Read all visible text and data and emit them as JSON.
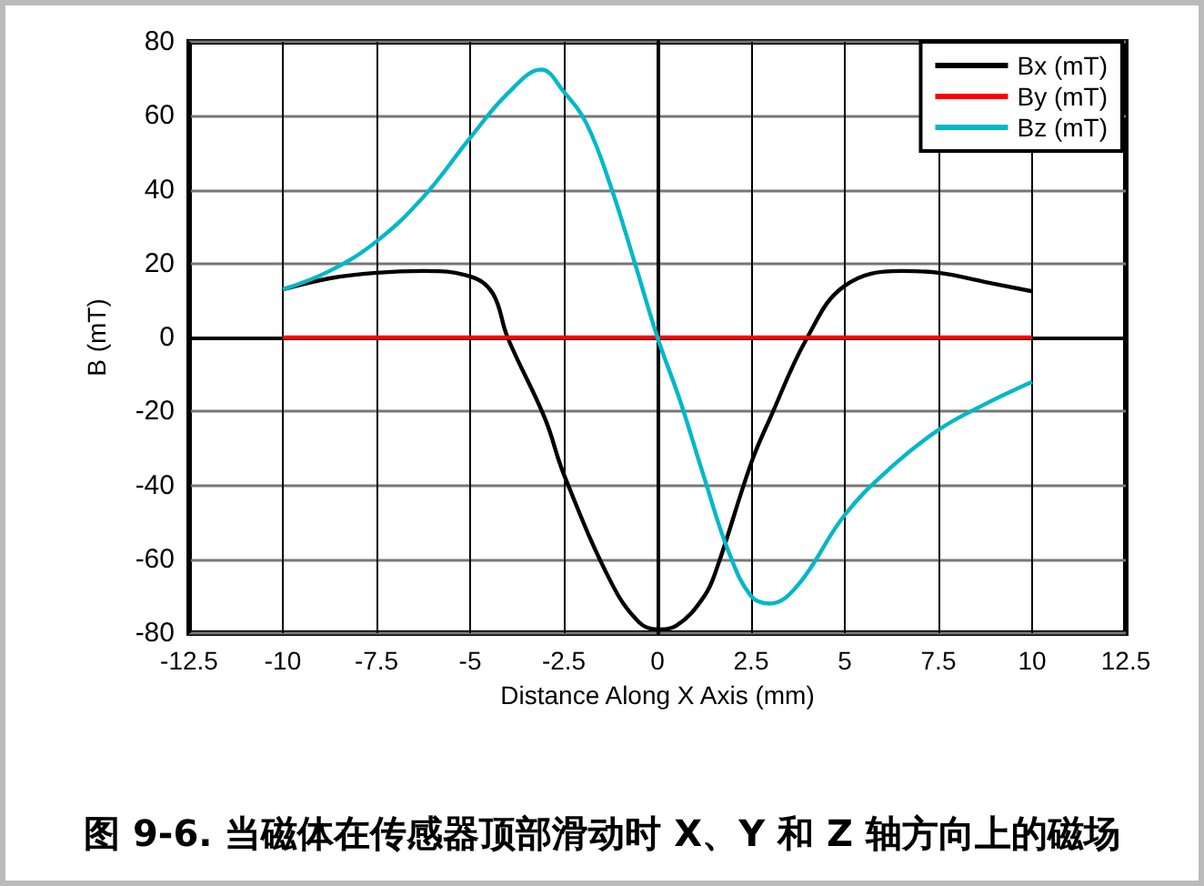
{
  "chart_data": {
    "type": "line",
    "title": "图 9-6. 当磁体在传感器顶部滑动时 X、Y 和 Z 轴方向上的磁场",
    "xlabel": "Distance Along X Axis (mm)",
    "ylabel": "B (mT)",
    "xlim": [
      -12.5,
      12.5
    ],
    "xticks": [
      -12.5,
      -10,
      -7.5,
      -5,
      -2.5,
      0,
      2.5,
      5,
      7.5,
      10,
      12.5
    ],
    "ylim": [
      -80,
      80
    ],
    "yticks": [
      -80,
      -60,
      -40,
      -20,
      0,
      20,
      40,
      60,
      80
    ],
    "grid": true,
    "legend": "top right",
    "marker": "none",
    "line_style": "solid",
    "series": [
      {
        "name": "Bx (mT)",
        "color": "#000000",
        "x": [
          -10,
          -8.75,
          -7.5,
          -6.25,
          -5,
          -4.4,
          -4,
          -3,
          -2.5,
          -1.25,
          -0.5,
          0,
          0.5,
          1.25,
          1.6,
          2.5,
          3,
          4,
          5,
          6.5,
          7.5,
          8.75,
          10
        ],
        "values": [
          13,
          16,
          17.5,
          18,
          16.5,
          12,
          0,
          -22,
          -37,
          -66,
          -77,
          -79,
          -78,
          -70,
          -62,
          -34,
          -22,
          0,
          14,
          18,
          17.5,
          15,
          12.5
        ]
      },
      {
        "name": "By (mT)",
        "color": "#ff0000",
        "x": [
          -10,
          10
        ],
        "values": [
          0,
          0
        ]
      },
      {
        "name": "Bz (mT)",
        "color": "#00b8c8",
        "x": [
          -10,
          -8.75,
          -7.5,
          -6.25,
          -5,
          -4,
          -3.1,
          -2.5,
          -1.9,
          -1.25,
          -0.6,
          0,
          0.6,
          1.25,
          1.9,
          2.5,
          3,
          3.75,
          5,
          6.25,
          7.5,
          8.75,
          10
        ],
        "values": [
          13,
          18,
          26,
          38,
          54,
          66,
          72.5,
          66.5,
          58,
          41,
          20,
          0,
          -17,
          -38,
          -58,
          -70,
          -72,
          -67,
          -48,
          -35,
          -25,
          -18,
          -12
        ]
      }
    ]
  }
}
